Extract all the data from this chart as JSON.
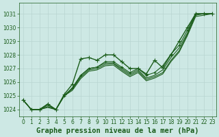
{
  "background_color": "#cde8e4",
  "grid_color": "#b8d4d0",
  "line_color": "#1a5c1a",
  "ylim": [
    1023.5,
    1031.8
  ],
  "xlim": [
    -0.5,
    23.5
  ],
  "yticks": [
    1024,
    1025,
    1026,
    1027,
    1028,
    1029,
    1030,
    1031
  ],
  "xticks": [
    0,
    1,
    2,
    3,
    4,
    5,
    6,
    7,
    8,
    9,
    10,
    11,
    12,
    13,
    14,
    15,
    16,
    17,
    18,
    19,
    20,
    21,
    22,
    23
  ],
  "series": [
    {
      "y": [
        1024.7,
        1024.0,
        1024.0,
        1024.4,
        1024.0,
        1025.1,
        1025.85,
        1027.7,
        1027.8,
        1027.6,
        1028.0,
        1028.0,
        1027.5,
        1027.0,
        1027.0,
        1026.6,
        1027.6,
        1027.05,
        1028.0,
        1029.0,
        1030.0,
        1031.0,
        1031.0,
        1031.0
      ],
      "marker": "+",
      "marker_size": 4,
      "linewidth": 1.0,
      "zorder": 5
    },
    {
      "y": [
        1024.7,
        1024.0,
        1024.0,
        1024.4,
        1024.0,
        1025.0,
        1025.6,
        1026.5,
        1027.0,
        1027.1,
        1027.5,
        1027.5,
        1027.1,
        1026.7,
        1027.0,
        1026.5,
        1026.7,
        1027.2,
        1028.05,
        1028.7,
        1029.8,
        1031.0,
        1031.0,
        1031.0
      ],
      "marker": "+",
      "marker_size": 3,
      "linewidth": 0.8,
      "zorder": 4
    },
    {
      "y": [
        1024.7,
        1024.0,
        1024.0,
        1024.3,
        1024.0,
        1025.0,
        1025.55,
        1026.45,
        1027.0,
        1027.1,
        1027.4,
        1027.4,
        1027.0,
        1026.6,
        1026.9,
        1026.3,
        1026.5,
        1026.9,
        1027.8,
        1028.5,
        1029.6,
        1031.0,
        1031.0,
        1031.0
      ],
      "marker": null,
      "marker_size": 0,
      "linewidth": 0.8,
      "zorder": 3
    },
    {
      "y": [
        1024.7,
        1024.0,
        1024.0,
        1024.2,
        1024.0,
        1025.0,
        1025.5,
        1026.35,
        1026.9,
        1027.0,
        1027.3,
        1027.35,
        1026.9,
        1026.5,
        1026.8,
        1026.2,
        1026.4,
        1026.7,
        1027.6,
        1028.3,
        1029.5,
        1030.9,
        1031.0,
        1031.0
      ],
      "marker": null,
      "marker_size": 0,
      "linewidth": 0.8,
      "zorder": 2
    },
    {
      "y": [
        1024.7,
        1024.0,
        1024.0,
        1024.15,
        1024.0,
        1025.0,
        1025.4,
        1026.25,
        1026.8,
        1026.9,
        1027.2,
        1027.25,
        1026.8,
        1026.4,
        1026.7,
        1026.1,
        1026.3,
        1026.6,
        1027.5,
        1028.2,
        1029.4,
        1030.8,
        1030.9,
        1031.0
      ],
      "marker": null,
      "marker_size": 0,
      "linewidth": 0.8,
      "zorder": 1
    }
  ],
  "xlabel": "Graphe pression niveau de la mer (hPa)",
  "fontsize_ticks": 5.5,
  "fontsize_xlabel": 7.5
}
